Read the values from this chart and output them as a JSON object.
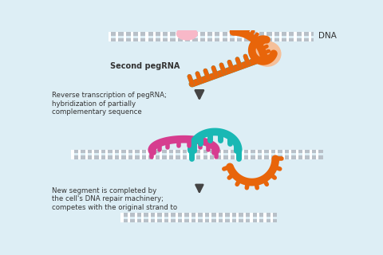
{
  "background_color": "#ddeef5",
  "text_color": "#333333",
  "dna_gray": "#b8c0c8",
  "dna_white": "#ffffff",
  "orange": "#e8650a",
  "orange_light": "#f5c09a",
  "teal": "#19b8b4",
  "pink": "#d63d8f",
  "arrow_color": "#444444",
  "label_dna": "DNA",
  "label_pegrna": "Second pegRNA",
  "label_step2": "Reverse transcription of pegRNA;\nhybridization of partially\ncomplementary sequence",
  "label_step3": "New segment is completed by\nthe cell's DNA repair machinery;\ncompetes with the original strand to",
  "fig_w": 4.8,
  "fig_h": 3.2,
  "dpi": 100
}
